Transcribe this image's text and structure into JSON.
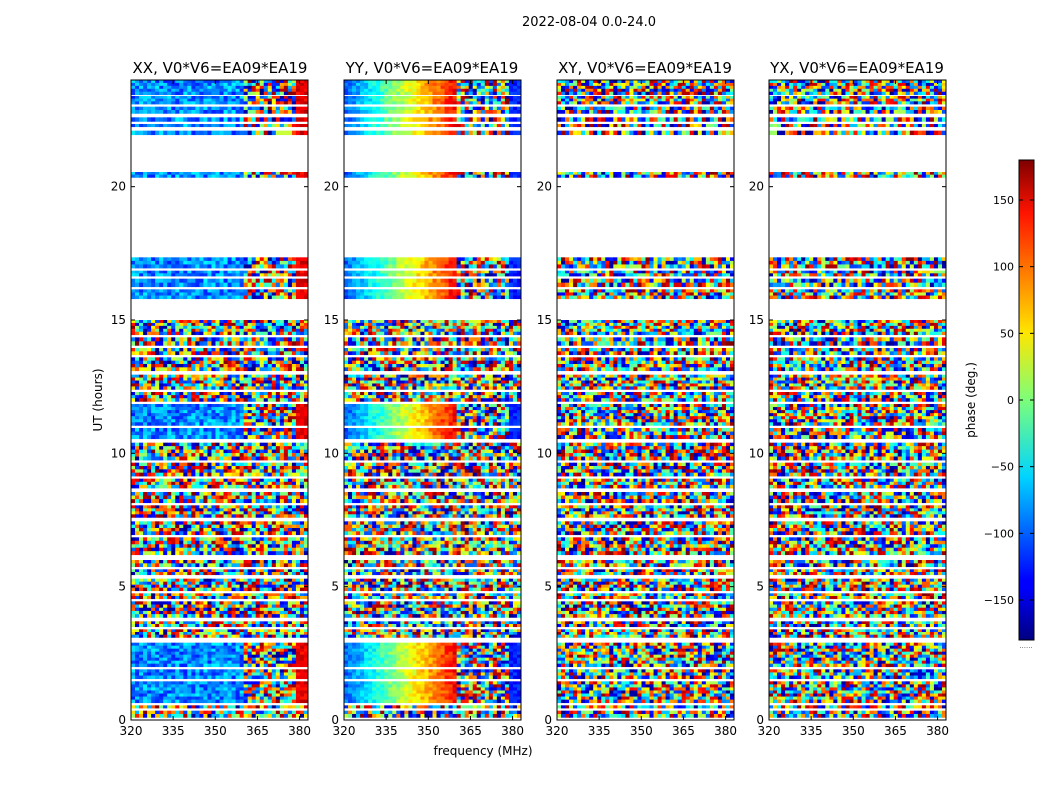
{
  "figure_title": "2022-08-04 0.0-24.0",
  "chart_data": {
    "type": "heatmap",
    "title": "2022-08-04 0.0-24.0",
    "xlabel": "frequency (MHz)",
    "ylabel": "UT (hours)",
    "xlim": [
      320,
      383
    ],
    "ylim": [
      0,
      24
    ],
    "x_ticks": [
      320,
      335,
      350,
      365,
      380
    ],
    "y_ticks": [
      0,
      5,
      10,
      15,
      20
    ],
    "panels": [
      {
        "title": "XX, V0*V6=EA09*EA19",
        "pol": "XX"
      },
      {
        "title": "YY, V0*V6=EA09*EA19",
        "pol": "YY"
      },
      {
        "title": "XY, V0*V6=EA09*EA19",
        "pol": "XY"
      },
      {
        "title": "YX, V0*V6=EA09*EA19",
        "pol": "YX"
      }
    ],
    "colorbar": {
      "label": "phase (deg.)",
      "range": [
        -180,
        180
      ],
      "ticks": [
        -150,
        -100,
        -50,
        0,
        50,
        100,
        150
      ],
      "tick_labels": [
        "−150",
        "−100",
        "−50",
        "0",
        "50",
        "100",
        "150"
      ],
      "colormap": "jet",
      "footnote": "......"
    },
    "data_blocks_ut": [
      [
        0.1,
        0.35
      ],
      [
        0.45,
        0.55
      ],
      [
        0.65,
        1.45
      ],
      [
        1.55,
        1.9
      ],
      [
        2.0,
        2.9
      ],
      [
        3.1,
        3.4
      ],
      [
        3.5,
        3.7
      ],
      [
        3.85,
        4.45
      ],
      [
        4.55,
        4.75
      ],
      [
        4.85,
        5.3
      ],
      [
        5.45,
        5.65
      ],
      [
        5.75,
        6.0
      ],
      [
        6.2,
        6.85
      ],
      [
        6.95,
        7.45
      ],
      [
        7.6,
        8.05
      ],
      [
        8.15,
        8.55
      ],
      [
        8.7,
        9.05
      ],
      [
        9.15,
        9.65
      ],
      [
        9.75,
        10.4
      ],
      [
        10.55,
        10.95
      ],
      [
        11.05,
        11.85
      ],
      [
        11.95,
        12.3
      ],
      [
        12.4,
        12.95
      ],
      [
        13.1,
        13.6
      ],
      [
        13.7,
        13.95
      ],
      [
        14.05,
        14.35
      ],
      [
        14.45,
        15.0
      ],
      [
        15.8,
        16.15
      ],
      [
        16.25,
        16.55
      ],
      [
        16.65,
        16.85
      ],
      [
        16.95,
        17.35
      ],
      [
        20.35,
        20.55
      ],
      [
        21.95,
        22.1
      ],
      [
        22.25,
        22.35
      ],
      [
        22.45,
        22.6
      ],
      [
        22.75,
        23.0
      ],
      [
        23.1,
        23.4
      ],
      [
        23.45,
        24.0
      ]
    ],
    "coherent_periods_ut": [
      [
        0.65,
        2.9
      ],
      [
        10.55,
        11.85
      ],
      [
        15.8,
        17.35
      ],
      [
        20.35,
        24.0
      ]
    ]
  }
}
